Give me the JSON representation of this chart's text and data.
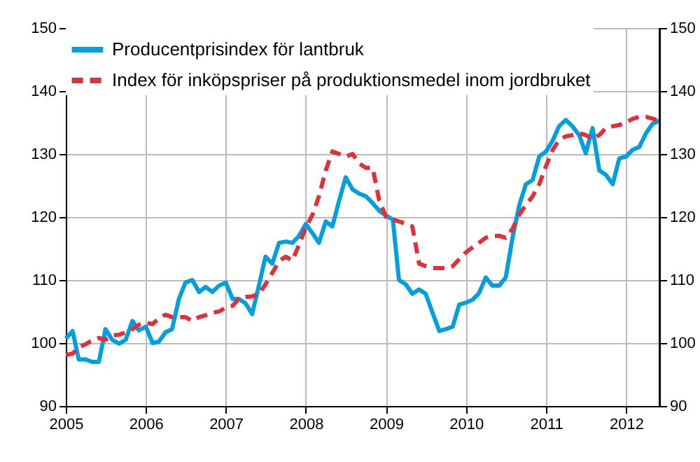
{
  "chart_data": {
    "type": "line",
    "x": [
      "2005-01",
      "2005-02",
      "2005-03",
      "2005-04",
      "2005-05",
      "2005-06",
      "2005-07",
      "2005-08",
      "2005-09",
      "2005-10",
      "2005-11",
      "2005-12",
      "2006-01",
      "2006-02",
      "2006-03",
      "2006-04",
      "2006-05",
      "2006-06",
      "2006-07",
      "2006-08",
      "2006-09",
      "2006-10",
      "2006-11",
      "2006-12",
      "2007-01",
      "2007-02",
      "2007-03",
      "2007-04",
      "2007-05",
      "2007-06",
      "2007-07",
      "2007-08",
      "2007-09",
      "2007-10",
      "2007-11",
      "2007-12",
      "2008-01",
      "2008-02",
      "2008-03",
      "2008-04",
      "2008-05",
      "2008-06",
      "2008-07",
      "2008-08",
      "2008-09",
      "2008-10",
      "2008-11",
      "2008-12",
      "2009-01",
      "2009-02",
      "2009-03",
      "2009-04",
      "2009-05",
      "2009-06",
      "2009-07",
      "2009-08",
      "2009-09",
      "2009-10",
      "2009-11",
      "2009-12",
      "2010-01",
      "2010-02",
      "2010-03",
      "2010-04",
      "2010-05",
      "2010-06",
      "2010-07",
      "2010-08",
      "2010-09",
      "2010-10",
      "2010-11",
      "2010-12",
      "2011-01",
      "2011-02",
      "2011-03",
      "2011-04",
      "2011-05",
      "2011-06",
      "2011-07",
      "2011-08",
      "2011-09",
      "2011-10",
      "2011-11",
      "2011-12",
      "2012-01",
      "2012-02",
      "2012-03",
      "2012-04",
      "2012-05",
      "2012-06"
    ],
    "series": [
      {
        "name": "Producentprisindex för lantbruk",
        "color": "#00a0e0",
        "line_style": "solid",
        "values": [
          100.7,
          101.9,
          97.4,
          97.4,
          97,
          97,
          102.2,
          100.5,
          99.9,
          100.5,
          103.5,
          102,
          102.6,
          100,
          100.2,
          101.7,
          102.2,
          107,
          109.6,
          110,
          108.1,
          108.9,
          108.1,
          109.1,
          109.6,
          107,
          107,
          106.3,
          104.6,
          109.1,
          113.7,
          112.6,
          115.9,
          116.1,
          115.9,
          117,
          118.9,
          117.4,
          115.9,
          119.3,
          118.5,
          122.6,
          126.3,
          124.4,
          123.7,
          123.3,
          122.2,
          121,
          120.2,
          119.6,
          110,
          109.3,
          107.8,
          108.5,
          107.8,
          104.8,
          101.9,
          102.2,
          102.6,
          106.1,
          106.4,
          106.9,
          107.9,
          110.4,
          109.1,
          109.1,
          110.4,
          116.7,
          121.9,
          125.2,
          125.9,
          129.6,
          130.4,
          132.2,
          134.4,
          135.4,
          134.4,
          133,
          130.1,
          134.1,
          127.4,
          126.7,
          125.2,
          129.3,
          129.6,
          130.7,
          131.1,
          133.3,
          134.8,
          135.3
        ]
      },
      {
        "name": "Index för inköpspriser på produktionsmedel inom jordbruket",
        "color": "#e0313a",
        "line_style": "dashed",
        "values": [
          98.1,
          98.3,
          99.3,
          99.8,
          100.4,
          100.8,
          100.5,
          101.2,
          101.3,
          101.7,
          102.2,
          102.9,
          103.2,
          103,
          103.9,
          104.5,
          104.1,
          104.1,
          104.1,
          103.5,
          104.1,
          104.4,
          104.8,
          105,
          105.6,
          105.9,
          107,
          107.3,
          107.4,
          107.8,
          109.3,
          111.1,
          113,
          113.7,
          113.1,
          115.6,
          118.3,
          120.4,
          123.3,
          127.4,
          130.4,
          130,
          129.6,
          130,
          128.5,
          127.8,
          127.8,
          122.6,
          120,
          119.6,
          119.3,
          118.9,
          118.5,
          112.6,
          112.2,
          111.9,
          111.9,
          111.9,
          112.2,
          113.3,
          114.4,
          115.2,
          115.9,
          116.7,
          117,
          117,
          116.7,
          118.1,
          120.4,
          121.9,
          123.3,
          125.2,
          128.1,
          130.7,
          132.2,
          132.8,
          133,
          133.3,
          133,
          132.4,
          133,
          134.1,
          134.4,
          134.6,
          135,
          135.6,
          135.9,
          135.9,
          135.6,
          135.3
        ]
      }
    ],
    "xlim": [
      "2005-01",
      "2012-06"
    ],
    "xticks": [
      "2005",
      "2006",
      "2007",
      "2008",
      "2009",
      "2010",
      "2011",
      "2012"
    ],
    "ylim": [
      90,
      150
    ],
    "yticks": [
      90,
      100,
      110,
      120,
      130,
      140,
      150
    ],
    "y2lim": [
      90,
      150
    ],
    "y2ticks": [
      90,
      100,
      110,
      120,
      130,
      140,
      150
    ],
    "grid": true,
    "legend": "top left",
    "marker": "none"
  }
}
